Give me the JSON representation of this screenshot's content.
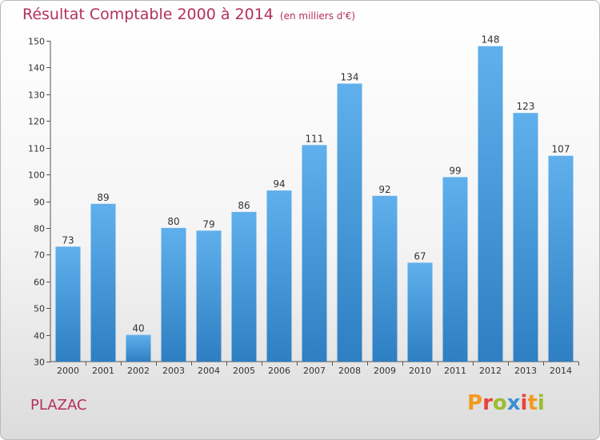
{
  "header": {
    "title": "Résultat Comptable 2000 à 2014",
    "unit": "(en milliers d'€)"
  },
  "footer": {
    "commune": "PLAZAC",
    "logo": "Proxiti"
  },
  "colors": {
    "bar_light": "#5fb0ec",
    "bar_dark": "#2e7fc2",
    "title": "#b3305a",
    "axis": "#555555"
  },
  "chart_data": {
    "type": "bar",
    "title": "Résultat Comptable 2000 à 2014",
    "subtitle": "(en milliers d'€)",
    "xlabel": "",
    "ylabel": "",
    "categories": [
      "2000",
      "2001",
      "2002",
      "2003",
      "2004",
      "2005",
      "2006",
      "2007",
      "2008",
      "2009",
      "2010",
      "2011",
      "2012",
      "2013",
      "2014"
    ],
    "values": [
      73,
      89,
      40,
      80,
      79,
      86,
      94,
      111,
      134,
      92,
      67,
      99,
      148,
      123,
      107
    ],
    "ylim": [
      30,
      150
    ],
    "yticks": [
      30,
      40,
      50,
      60,
      70,
      80,
      90,
      100,
      110,
      120,
      130,
      140,
      150
    ],
    "grid": false,
    "legend": "none",
    "data_labels": true
  }
}
